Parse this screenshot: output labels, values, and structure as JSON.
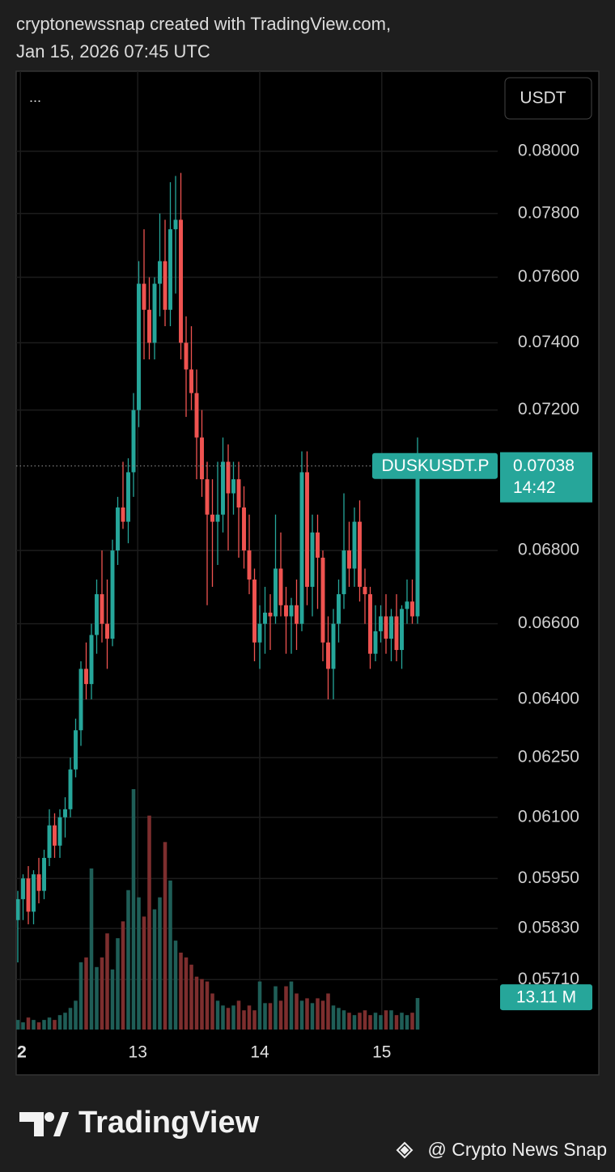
{
  "chart_data": {
    "type": "candlestick",
    "title": "cryptonewssnap created with TradingView.com,",
    "subtitle": "Jan 15, 2026 07:45 UTC",
    "menu": "...",
    "currency": "USDT",
    "symbol": "DUSKUSDT.P",
    "countdown": "14:42",
    "brand": "TradingView",
    "credit": "@ Crypto News Snap",
    "volume_label": "13.11 M",
    "log_scale": true,
    "grid": true,
    "up_color": "#26a69a",
    "down_color": "#ef5350",
    "volume_up_color": "#1f5e57",
    "volume_down_color": "#7d2e2e",
    "ylim": [
      0.05595,
      0.08265
    ],
    "yticks": [
      {
        "value": 0.08,
        "label": "0.08000"
      },
      {
        "value": 0.078,
        "label": "0.07800"
      },
      {
        "value": 0.076,
        "label": "0.07600"
      },
      {
        "value": 0.074,
        "label": "0.07400"
      },
      {
        "value": 0.072,
        "label": "0.07200"
      },
      {
        "value": 0.068,
        "label": "0.06800"
      },
      {
        "value": 0.066,
        "label": "0.06600"
      },
      {
        "value": 0.064,
        "label": "0.06400"
      },
      {
        "value": 0.0625,
        "label": "0.06250"
      },
      {
        "value": 0.061,
        "label": "0.06100"
      },
      {
        "value": 0.0595,
        "label": "0.05950"
      },
      {
        "value": 0.0583,
        "label": "0.05830"
      },
      {
        "value": 0.0571,
        "label": "0.05710"
      }
    ],
    "xlim": [
      0,
      76
    ],
    "xticks": [
      {
        "value": 0.5,
        "label": "2"
      },
      {
        "value": 22.8,
        "label": "13"
      },
      {
        "value": 46,
        "label": "14"
      },
      {
        "value": 69.2,
        "label": "15"
      }
    ],
    "open": [
      0.0585,
      0.059,
      0.0595,
      0.0587,
      0.0596,
      0.0592,
      0.06,
      0.0608,
      0.0603,
      0.061,
      0.0612,
      0.0622,
      0.0632,
      0.0648,
      0.0644,
      0.0657,
      0.0668,
      0.066,
      0.0656,
      0.068,
      0.0692,
      0.0688,
      0.0702,
      0.072,
      0.0758,
      0.075,
      0.074,
      0.0758,
      0.0765,
      0.075,
      0.0775,
      0.0778,
      0.074,
      0.0732,
      0.0725,
      0.0712,
      0.07,
      0.069,
      0.0688,
      0.069,
      0.0705,
      0.0696,
      0.07,
      0.0692,
      0.068,
      0.0672,
      0.0655,
      0.066,
      0.0663,
      0.0662,
      0.0675,
      0.0665,
      0.0662,
      0.0665,
      0.066,
      0.0702,
      0.067,
      0.0685,
      0.0678,
      0.0655,
      0.0648,
      0.066,
      0.0668,
      0.068,
      0.0675,
      0.0688,
      0.067,
      0.0668,
      0.0652,
      0.0658,
      0.0662,
      0.0656,
      0.0662,
      0.0653,
      0.0664,
      0.0666,
      0.0662
    ],
    "high": [
      0.0592,
      0.0596,
      0.0598,
      0.0597,
      0.06,
      0.0602,
      0.0612,
      0.0611,
      0.0612,
      0.0615,
      0.0625,
      0.0635,
      0.065,
      0.0655,
      0.066,
      0.0672,
      0.068,
      0.0672,
      0.0683,
      0.0695,
      0.0705,
      0.0706,
      0.0725,
      0.0765,
      0.0775,
      0.076,
      0.076,
      0.078,
      0.0778,
      0.079,
      0.0792,
      0.0793,
      0.0748,
      0.0745,
      0.0732,
      0.072,
      0.0705,
      0.07,
      0.0705,
      0.0712,
      0.071,
      0.0705,
      0.0705,
      0.0698,
      0.069,
      0.0675,
      0.0665,
      0.067,
      0.0668,
      0.069,
      0.0685,
      0.067,
      0.0667,
      0.0672,
      0.0708,
      0.0708,
      0.069,
      0.069,
      0.068,
      0.0662,
      0.0664,
      0.0672,
      0.0696,
      0.0688,
      0.0692,
      0.0694,
      0.0675,
      0.067,
      0.0665,
      0.0665,
      0.0668,
      0.0664,
      0.0668,
      0.0665,
      0.0672,
      0.0672,
      0.0712
    ],
    "low": [
      0.0575,
      0.0585,
      0.0584,
      0.0584,
      0.0589,
      0.059,
      0.0598,
      0.06,
      0.06,
      0.0605,
      0.061,
      0.062,
      0.0628,
      0.064,
      0.064,
      0.0652,
      0.0655,
      0.0648,
      0.0654,
      0.0676,
      0.0686,
      0.0682,
      0.0695,
      0.0715,
      0.0735,
      0.0735,
      0.0735,
      0.0748,
      0.0745,
      0.0745,
      0.0755,
      0.0735,
      0.0718,
      0.072,
      0.07,
      0.0695,
      0.0665,
      0.067,
      0.0676,
      0.0685,
      0.068,
      0.069,
      0.0678,
      0.0675,
      0.0668,
      0.065,
      0.0648,
      0.0652,
      0.0653,
      0.066,
      0.0662,
      0.0652,
      0.0652,
      0.0653,
      0.0658,
      0.0665,
      0.0662,
      0.0664,
      0.065,
      0.064,
      0.064,
      0.0655,
      0.0664,
      0.067,
      0.067,
      0.0666,
      0.066,
      0.0648,
      0.065,
      0.0655,
      0.0652,
      0.065,
      0.065,
      0.0648,
      0.066,
      0.066,
      0.066
    ],
    "close": [
      0.059,
      0.0595,
      0.0587,
      0.0596,
      0.0592,
      0.06,
      0.0608,
      0.0603,
      0.061,
      0.0612,
      0.0622,
      0.0632,
      0.0648,
      0.0644,
      0.0657,
      0.0668,
      0.066,
      0.0656,
      0.068,
      0.0692,
      0.0688,
      0.0702,
      0.072,
      0.0758,
      0.075,
      0.074,
      0.0758,
      0.0765,
      0.075,
      0.0775,
      0.0778,
      0.074,
      0.0732,
      0.0725,
      0.0712,
      0.07,
      0.069,
      0.0688,
      0.069,
      0.0705,
      0.0696,
      0.07,
      0.0692,
      0.068,
      0.0672,
      0.0655,
      0.066,
      0.0663,
      0.0662,
      0.0675,
      0.0665,
      0.0662,
      0.0665,
      0.066,
      0.0702,
      0.067,
      0.0685,
      0.0678,
      0.0655,
      0.0648,
      0.066,
      0.0668,
      0.068,
      0.0675,
      0.0688,
      0.067,
      0.0668,
      0.0652,
      0.0658,
      0.0662,
      0.0656,
      0.0662,
      0.0653,
      0.0664,
      0.0666,
      0.0662,
      0.07038
    ],
    "volume": [
      4,
      3,
      5,
      4,
      3,
      4,
      5,
      4,
      6,
      7,
      9,
      12,
      28,
      30,
      67,
      26,
      30,
      40,
      25,
      38,
      45,
      58,
      100,
      55,
      47,
      89,
      50,
      55,
      78,
      62,
      37,
      32,
      30,
      27,
      22,
      21,
      20,
      15,
      12,
      10,
      9,
      10,
      12,
      8,
      10,
      8,
      20,
      11,
      11,
      18,
      12,
      18,
      20,
      15,
      12,
      13,
      11,
      13,
      12,
      15,
      10,
      9,
      8,
      7,
      6,
      7,
      8,
      6,
      7,
      6,
      8,
      8,
      6,
      7,
      6,
      7,
      13.11
    ]
  }
}
